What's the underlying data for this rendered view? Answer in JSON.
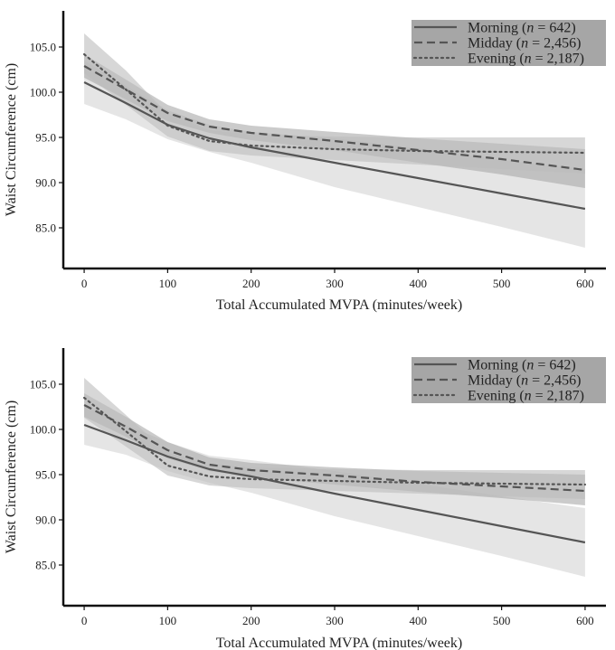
{
  "colors": {
    "background": "#ffffff",
    "axis": "#111111",
    "band_morning": "#d3d3d3",
    "band_midday": "#a9a9a9",
    "band_evening": "#bcbcbc",
    "line": "#555555",
    "legend_box": "#a6a6a6"
  },
  "chart_data": [
    {
      "type": "line",
      "title": "",
      "xlabel": "Total Accumulated MVPA  (minutes/week)",
      "ylabel": "Waist Circumference (cm)",
      "xlim": [
        -25,
        625
      ],
      "ylim": [
        80.5,
        109.0
      ],
      "xticks": [
        0,
        100,
        200,
        300,
        400,
        500,
        600
      ],
      "xtick_labels": [
        "0",
        "100",
        "200",
        "300",
        "400",
        "500",
        "600"
      ],
      "yticks": [
        85.0,
        90.0,
        95.0,
        100.0,
        105.0
      ],
      "ytick_labels": [
        "85.0",
        "90.0",
        "95.0",
        "100.0",
        "105.0"
      ],
      "grid": false,
      "legend_position": "top-right",
      "x": [
        0,
        50,
        100,
        150,
        200,
        300,
        400,
        500,
        600
      ],
      "series": [
        {
          "name": "Morning",
          "legend_label": "Morning (",
          "legend_n": "n",
          "legend_tail": " = 642)",
          "style": "solid",
          "values": [
            101.1,
            98.8,
            96.4,
            94.9,
            93.9,
            92.2,
            90.5,
            88.8,
            87.1
          ],
          "lower": [
            98.7,
            97.0,
            94.8,
            93.4,
            92.2,
            89.5,
            87.3,
            85.1,
            82.8
          ],
          "upper": [
            103.5,
            100.7,
            98.0,
            96.4,
            95.6,
            94.9,
            93.8,
            92.5,
            91.5
          ]
        },
        {
          "name": "Midday",
          "legend_label": "Midday  (",
          "legend_n": "n",
          "legend_tail": " = 2,456)",
          "style": "dashed",
          "values": [
            102.9,
            100.3,
            97.7,
            96.2,
            95.5,
            94.6,
            93.6,
            92.6,
            91.4
          ],
          "lower": [
            101.6,
            99.2,
            96.8,
            95.5,
            94.7,
            93.6,
            92.2,
            90.9,
            89.4
          ],
          "upper": [
            104.2,
            101.4,
            98.6,
            97.0,
            96.3,
            95.6,
            94.9,
            94.3,
            93.7
          ]
        },
        {
          "name": "Evening",
          "legend_label": "Evening (",
          "legend_n": "n",
          "legend_tail": " = 2,187)",
          "style": "dotted",
          "values": [
            104.2,
            100.3,
            96.3,
            94.6,
            94.1,
            93.7,
            93.5,
            93.4,
            93.3
          ],
          "lower": [
            102.1,
            98.6,
            95.1,
            93.5,
            93.0,
            92.5,
            92.0,
            91.5,
            91.0
          ],
          "upper": [
            106.5,
            102.4,
            97.6,
            95.8,
            95.3,
            95.1,
            95.0,
            95.0,
            95.0
          ]
        }
      ]
    },
    {
      "type": "line",
      "title": "",
      "xlabel": "Total Accumulated MVPA  (minutes/week)",
      "ylabel": "Waist Circumference (cm)",
      "xlim": [
        -25,
        625
      ],
      "ylim": [
        80.5,
        109.0
      ],
      "xticks": [
        0,
        100,
        200,
        300,
        400,
        500,
        600
      ],
      "xtick_labels": [
        "0",
        "100",
        "200",
        "300",
        "400",
        "500",
        "600"
      ],
      "yticks": [
        85.0,
        90.0,
        95.0,
        100.0,
        105.0
      ],
      "ytick_labels": [
        "85.0",
        "90.0",
        "95.0",
        "100.0",
        "105.0"
      ],
      "grid": false,
      "legend_position": "top-right",
      "x": [
        0,
        50,
        100,
        150,
        200,
        300,
        400,
        500,
        600
      ],
      "series": [
        {
          "name": "Morning",
          "legend_label": "Morning (",
          "legend_n": "n",
          "legend_tail": " = 642)",
          "style": "solid",
          "values": [
            100.5,
            98.8,
            97.0,
            95.6,
            94.8,
            92.9,
            91.1,
            89.3,
            87.5
          ],
          "lower": [
            98.3,
            97.2,
            95.4,
            94.1,
            93.0,
            90.4,
            88.2,
            86.0,
            83.7
          ],
          "upper": [
            102.7,
            100.5,
            98.6,
            97.1,
            96.6,
            95.4,
            94.0,
            92.6,
            91.3
          ]
        },
        {
          "name": "Midday",
          "legend_label": "Midday  (",
          "legend_n": "n",
          "legend_tail": " = 2,456)",
          "style": "dashed",
          "values": [
            102.7,
            100.3,
            97.7,
            96.1,
            95.5,
            94.9,
            94.2,
            93.7,
            93.2
          ],
          "lower": [
            101.4,
            99.2,
            96.8,
            95.4,
            94.7,
            93.9,
            93.1,
            92.4,
            91.6
          ],
          "upper": [
            104.0,
            101.4,
            98.6,
            96.9,
            96.3,
            95.8,
            95.4,
            95.2,
            95.0
          ]
        },
        {
          "name": "Evening",
          "legend_label": "Evening (",
          "legend_n": "n",
          "legend_tail": " = 2,187)",
          "style": "dotted",
          "values": [
            103.5,
            99.8,
            96.0,
            94.8,
            94.5,
            94.3,
            94.1,
            94.0,
            93.9
          ],
          "lower": [
            101.3,
            98.1,
            94.9,
            93.8,
            93.5,
            93.2,
            92.9,
            92.6,
            92.3
          ],
          "upper": [
            105.7,
            101.6,
            97.4,
            96.2,
            95.8,
            95.6,
            95.5,
            95.5,
            95.5
          ]
        }
      ]
    }
  ]
}
